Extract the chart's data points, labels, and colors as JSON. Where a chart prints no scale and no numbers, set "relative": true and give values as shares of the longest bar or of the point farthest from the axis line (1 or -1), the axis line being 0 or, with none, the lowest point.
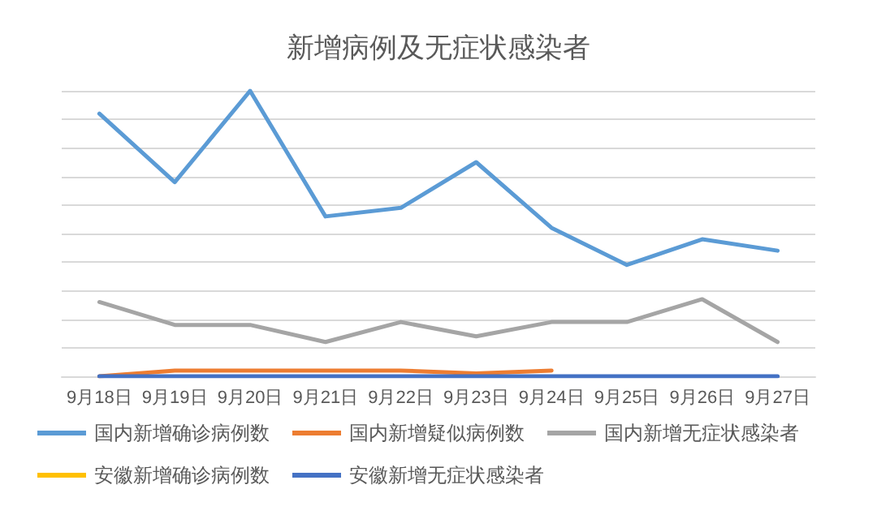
{
  "chart_data": {
    "type": "line",
    "title": "新增病例及无症状感染者",
    "relative": true,
    "grid": "y",
    "legend": "bottom",
    "marker": "none",
    "line_style": "solid",
    "categories": [
      "9月18日",
      "9月19日",
      "9月20日",
      "9月21日",
      "9月22日",
      "9月23日",
      "9月24日",
      "9月25日",
      "9月26日",
      "9月27日"
    ],
    "series": [
      {
        "name": "国内新增确诊病例数",
        "color": "#5b9bd5",
        "values": [
          0.92,
          0.68,
          1,
          0.56,
          0.59,
          0.75,
          0.52,
          0.39,
          0.48,
          0.44
        ]
      },
      {
        "name": "国内新增疑似病例数",
        "color": "#ed7d31",
        "values": [
          0,
          0.02,
          0.02,
          0.02,
          0.02,
          0.01,
          0.02,
          null,
          null,
          null
        ]
      },
      {
        "name": "国内新增无症状感染者",
        "color": "#a5a5a5",
        "values": [
          0.26,
          0.18,
          0.18,
          0.12,
          0.19,
          0.14,
          0.19,
          0.19,
          0.27,
          0.12
        ]
      },
      {
        "name": "安徽新增确诊病例数",
        "color": "#ffc000",
        "values": [
          null,
          null,
          null,
          null,
          null,
          null,
          null,
          null,
          null,
          null
        ]
      },
      {
        "name": "安徽新增无症状感染者",
        "color": "#4472c4",
        "values": [
          0,
          0,
          0,
          0,
          0,
          0,
          0,
          0,
          0,
          0
        ]
      }
    ]
  }
}
